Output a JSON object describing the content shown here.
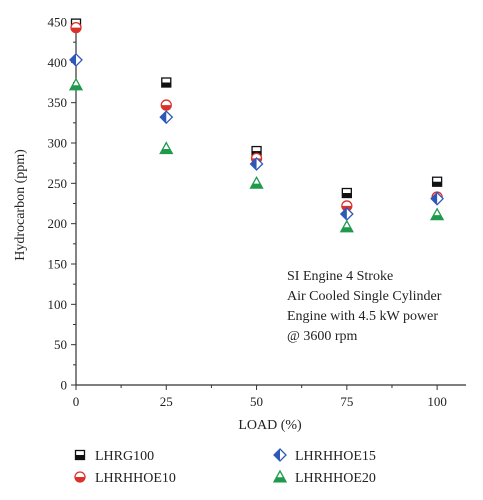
{
  "chart_data": {
    "type": "scatter",
    "xlabel": "LOAD (%)",
    "ylabel": "Hydrocarbon (ppm)",
    "x": [
      0,
      25,
      50,
      75,
      100
    ],
    "x_ticks": [
      0,
      25,
      50,
      75,
      100
    ],
    "y_ticks": [
      0,
      50,
      100,
      150,
      200,
      250,
      300,
      350,
      400,
      450
    ],
    "xlim": [
      0,
      108
    ],
    "ylim": [
      0,
      450
    ],
    "grid": false,
    "legend_position": "bottom",
    "series": [
      {
        "name": "LHRG100",
        "marker": "half-square",
        "color": "#111111",
        "values": [
          448,
          375,
          290,
          238,
          252
        ]
      },
      {
        "name": "LHRHHOE10",
        "marker": "half-circle",
        "color": "#d9322b",
        "values": [
          443,
          347,
          281,
          222,
          233
        ]
      },
      {
        "name": "LHRHHOE15",
        "marker": "half-diamond",
        "color": "#2e58b8",
        "values": [
          403,
          332,
          274,
          212,
          231
        ]
      },
      {
        "name": "LHRHHOE20",
        "marker": "half-triangle",
        "color": "#1f9a4c",
        "values": [
          372,
          293,
          250,
          196,
          211
        ]
      }
    ],
    "annotation": [
      "SI Engine 4 Stroke",
      "Air Cooled Single Cylinder",
      "Engine with 4.5 kW power",
      "@ 3600 rpm"
    ]
  }
}
